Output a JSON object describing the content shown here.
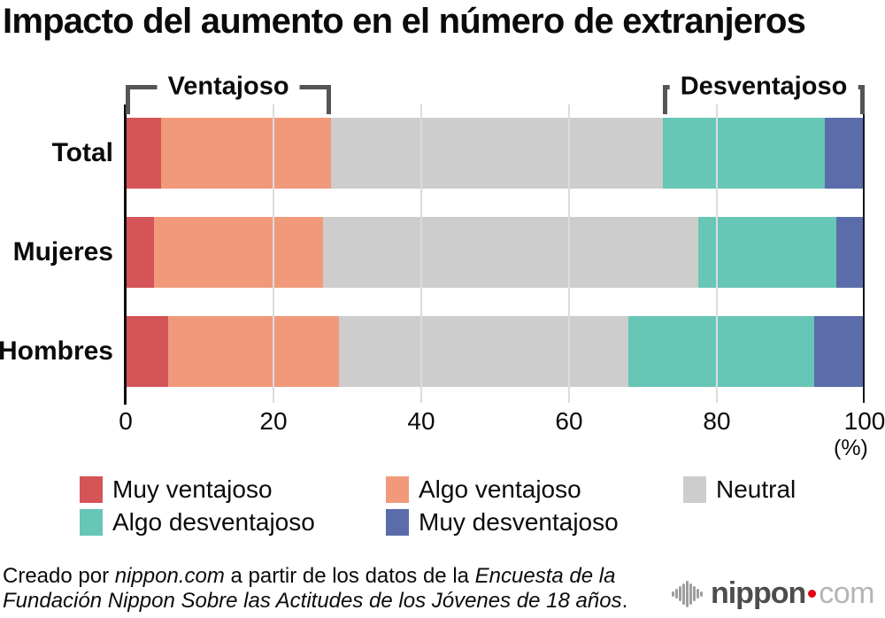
{
  "title": "Impacto del aumento en el número de extranjeros",
  "chart_data": {
    "type": "bar",
    "orientation": "horizontal",
    "stacked": true,
    "categories": [
      "Total",
      "Mujeres",
      "Hombres"
    ],
    "series": [
      {
        "name": "Muy ventajoso",
        "color": "#d45457",
        "values": [
          4.8,
          3.8,
          5.7
        ]
      },
      {
        "name": "Algo ventajoso",
        "color": "#f19a7b",
        "values": [
          23.0,
          22.9,
          23.2
        ]
      },
      {
        "name": "Neutral",
        "color": "#cdcdcd",
        "values": [
          44.9,
          50.8,
          39.1
        ]
      },
      {
        "name": "Algo desventajoso",
        "color": "#67c6b6",
        "values": [
          21.9,
          18.7,
          25.2
        ]
      },
      {
        "name": "Muy desventajoso",
        "color": "#5a6ca9",
        "values": [
          5.4,
          3.8,
          6.8
        ]
      }
    ],
    "xlim": [
      0,
      100
    ],
    "xticks": [
      0,
      20,
      40,
      60,
      80,
      100
    ],
    "x_unit_label": "(%)",
    "grid": "vertical",
    "legend_position": "bottom",
    "annotations": [
      {
        "label": "Ventajoso",
        "from_pct": 0,
        "to_pct": 27.8
      },
      {
        "label": "Desventajoso",
        "from_pct": 72.7,
        "to_pct": 100
      }
    ]
  },
  "colors": {
    "axis": "#0e0e0e",
    "gridline": "#dcdcdc",
    "bracket": "#555555",
    "logo_text": "#4d4d4d",
    "logo_tld": "#b5b5b5",
    "logo_dot": "#e60012"
  },
  "footer": {
    "lines": [
      [
        {
          "t": "Creado por ",
          "i": false
        },
        {
          "t": "nippon.com",
          "i": true
        },
        {
          "t": " a partir de los datos de la ",
          "i": false
        },
        {
          "t": "Encuesta de la",
          "i": true
        }
      ],
      [
        {
          "t": "Fundación Nippon Sobre las Actitudes de los Jóvenes de 18 años",
          "i": true
        },
        {
          "t": ".",
          "i": false
        }
      ]
    ]
  },
  "logo": {
    "name": "nippon",
    "tld": "com",
    "icon": "soundwave-icon"
  }
}
